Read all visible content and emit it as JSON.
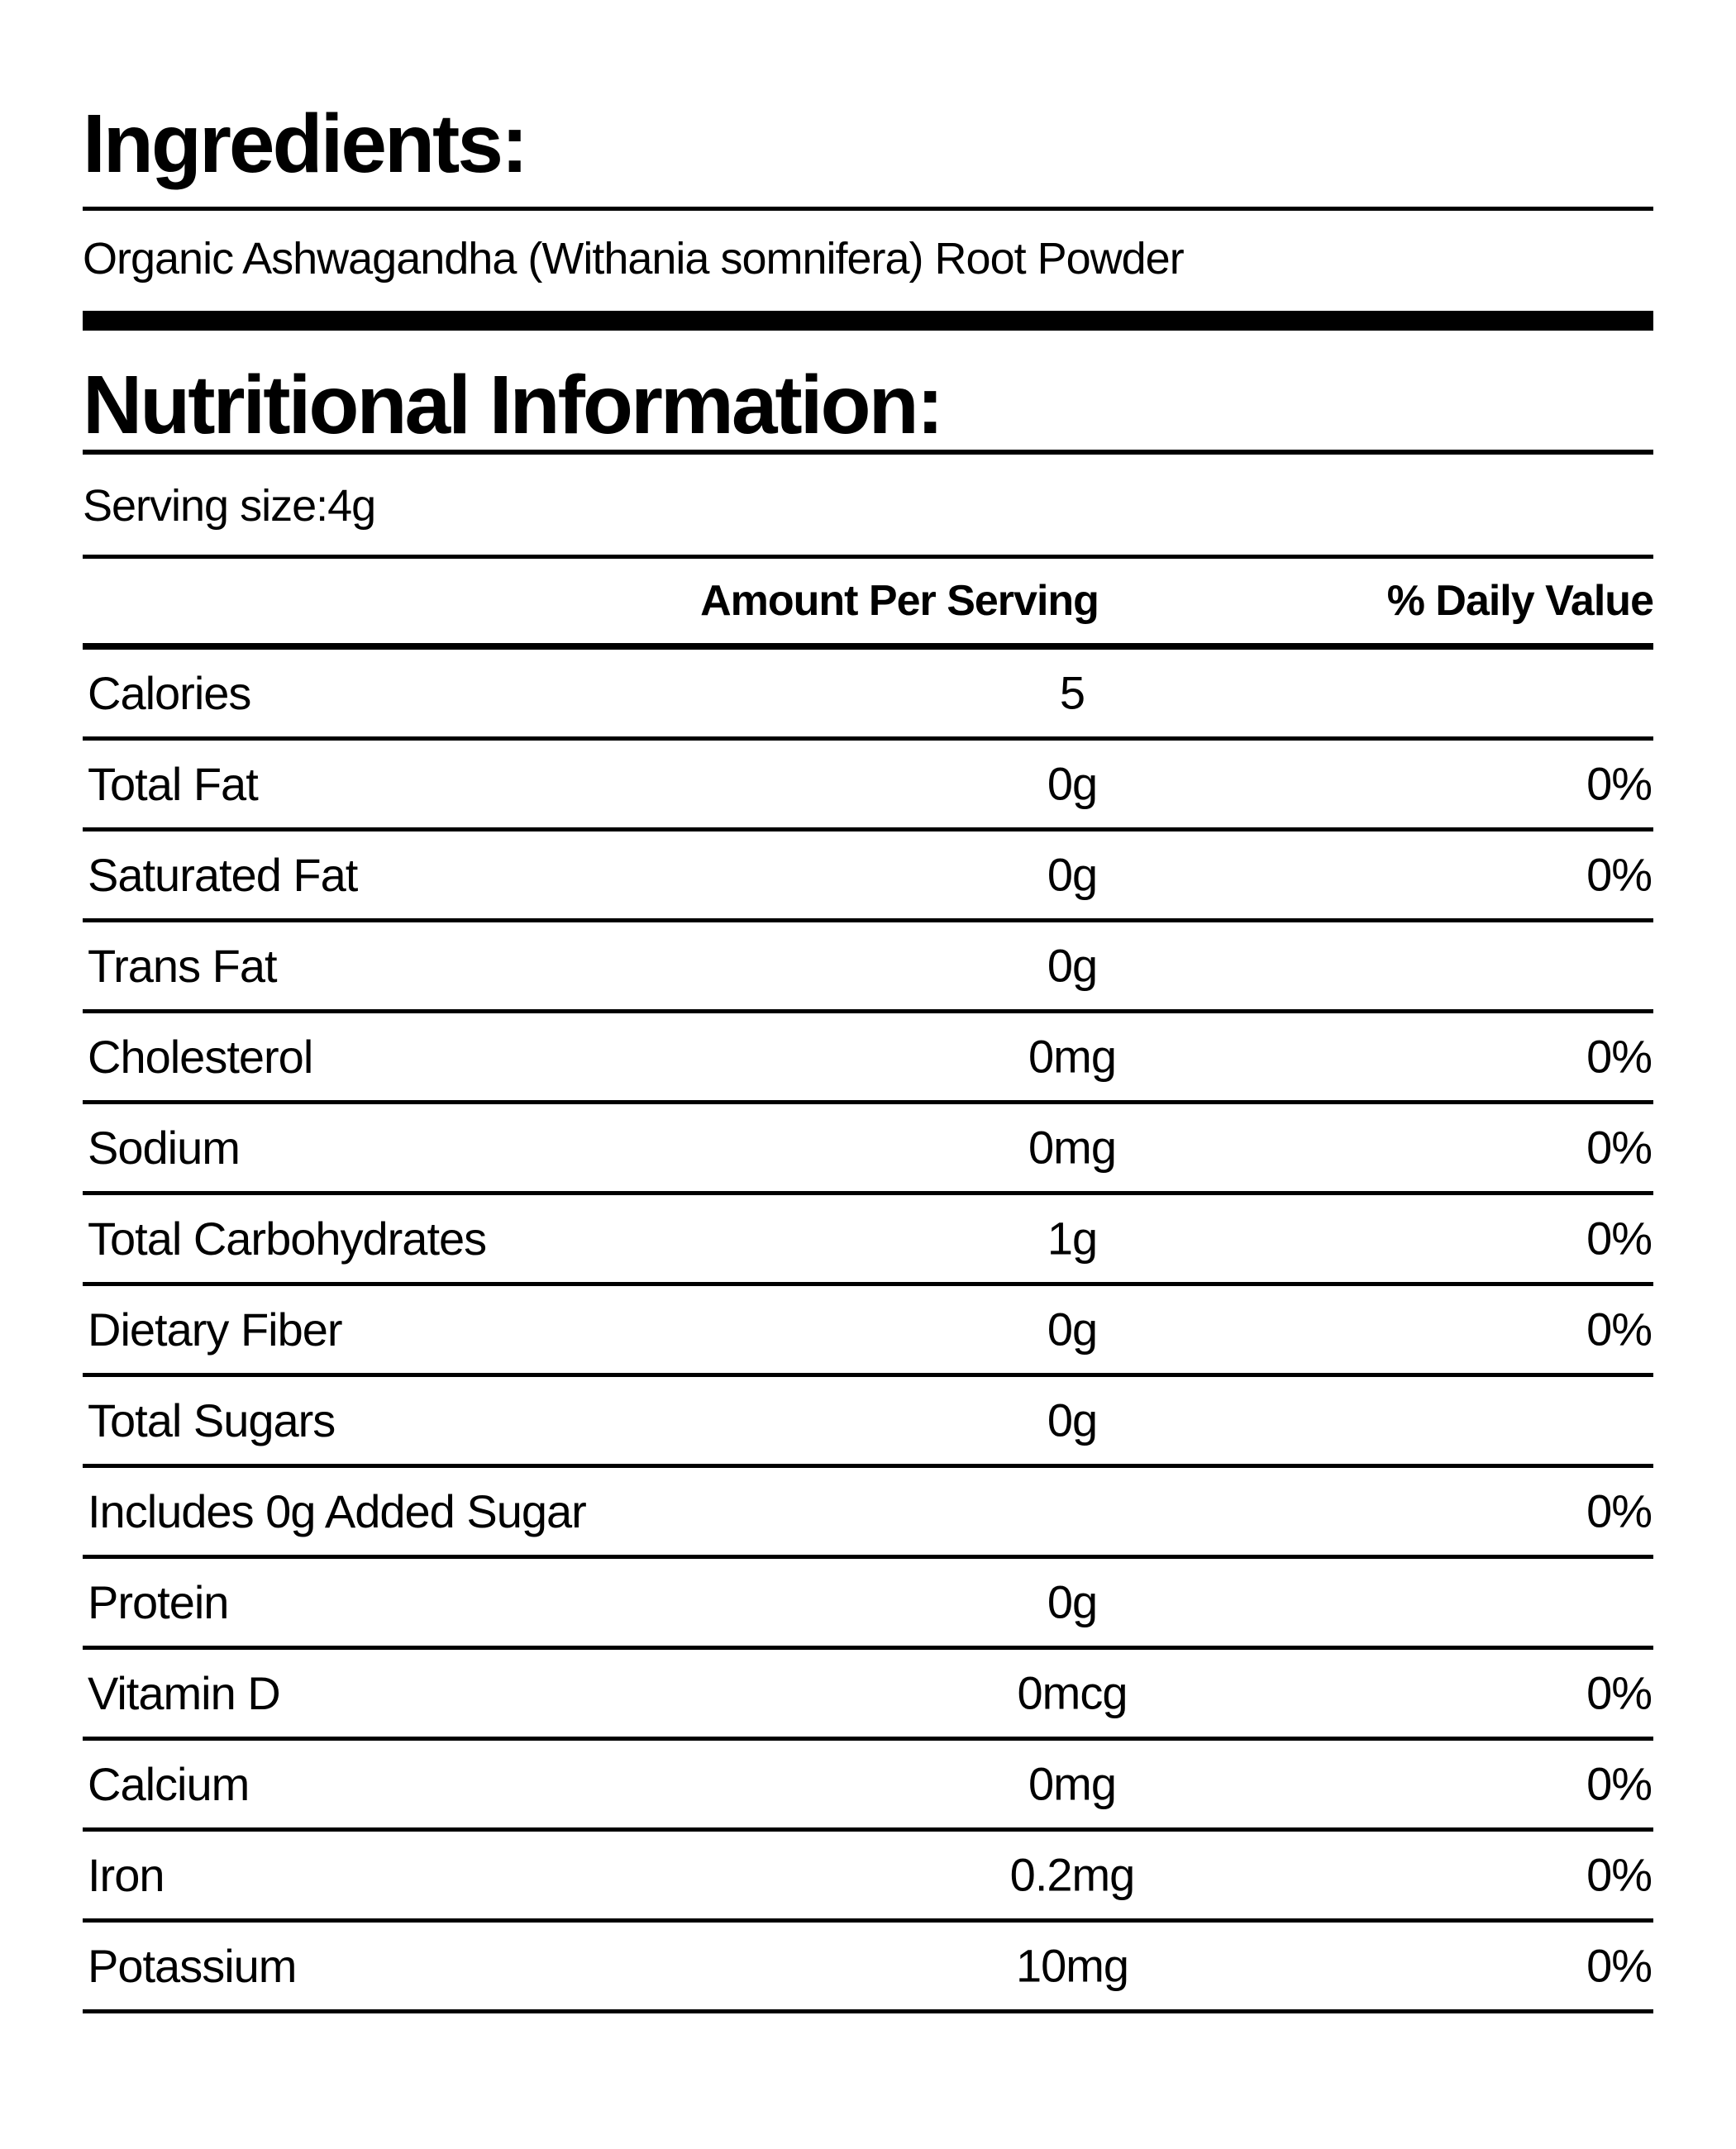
{
  "colors": {
    "text": "#000000",
    "rule": "#000000",
    "background": "#ffffff"
  },
  "ingredients_section": {
    "title": "Ingredients:",
    "text": "Organic Ashwagandha (Withania somnifera) Root Powder"
  },
  "nutrition_section": {
    "title": "Nutritional Information:",
    "serving_size_label": "Serving size:4g",
    "columns": {
      "amount": "Amount Per Serving",
      "daily_value": "% Daily Value"
    },
    "rows": [
      {
        "label": "Calories",
        "amount": "5",
        "dv": ""
      },
      {
        "label": "Total Fat",
        "amount": "0g",
        "dv": "0%"
      },
      {
        "label": "Saturated Fat",
        "amount": "0g",
        "dv": "0%"
      },
      {
        "label": "Trans Fat",
        "amount": "0g",
        "dv": ""
      },
      {
        "label": "Cholesterol",
        "amount": "0mg",
        "dv": "0%"
      },
      {
        "label": "Sodium",
        "amount": "0mg",
        "dv": "0%"
      },
      {
        "label": "Total Carbohydrates",
        "amount": "1g",
        "dv": "0%"
      },
      {
        "label": "Dietary Fiber",
        "amount": "0g",
        "dv": "0%"
      },
      {
        "label": "Total Sugars",
        "amount": "0g",
        "dv": ""
      },
      {
        "label": "Includes 0g Added Sugar",
        "amount": "",
        "dv": "0%"
      },
      {
        "label": "Protein",
        "amount": "0g",
        "dv": ""
      },
      {
        "label": "Vitamin D",
        "amount": "0mcg",
        "dv": "0%"
      },
      {
        "label": "Calcium",
        "amount": "0mg",
        "dv": "0%"
      },
      {
        "label": "Iron",
        "amount": "0.2mg",
        "dv": "0%"
      },
      {
        "label": "Potassium",
        "amount": "10mg",
        "dv": "0%"
      }
    ]
  }
}
